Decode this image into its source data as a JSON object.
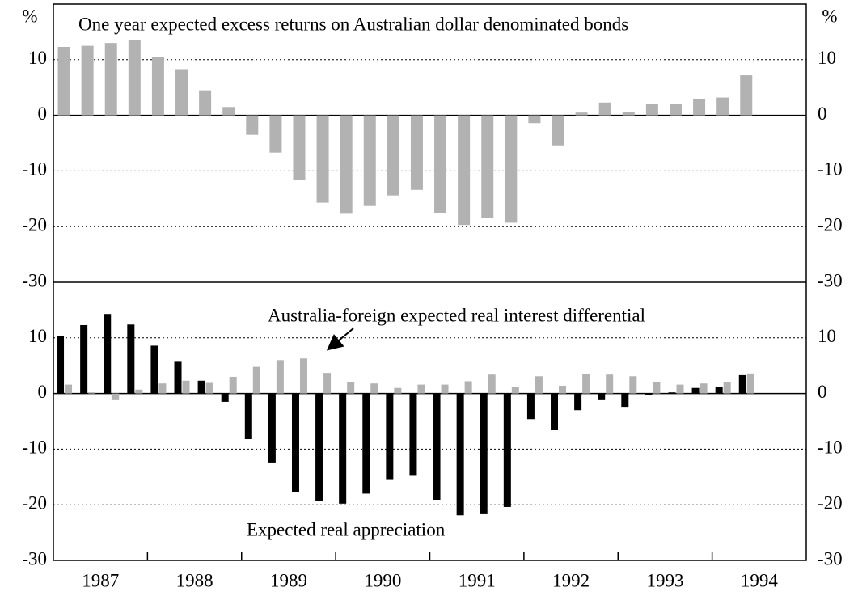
{
  "chart_data": [
    {
      "type": "bar",
      "title": "One year expected excess returns on Australian dollar denominated bonds",
      "y_unit": "%",
      "categories": [
        null,
        null,
        null,
        null,
        null,
        null,
        null,
        null,
        null,
        null,
        null,
        null,
        null,
        null,
        null,
        null,
        null,
        null,
        null,
        null,
        null,
        null,
        null,
        null,
        null,
        null,
        null,
        null,
        null,
        null,
        null,
        null
      ],
      "series": [
        {
          "color": "#b2b2b2",
          "values": [
            12.3,
            12.5,
            13.0,
            13.5,
            10.5,
            8.3,
            4.5,
            1.5,
            -3.5,
            -6.7,
            -11.6,
            -15.7,
            -17.7,
            -16.3,
            -14.4,
            -13.4,
            -17.5,
            -19.7,
            -18.5,
            -19.3,
            -1.4,
            -5.4,
            0.5,
            2.3,
            0.6,
            2.0,
            2.0,
            3.0,
            3.2,
            7.2,
            null,
            null
          ]
        }
      ],
      "ylim": [
        -30,
        20
      ],
      "yticks": [
        -30,
        -20,
        -10,
        0,
        10
      ],
      "grid": true
    },
    {
      "type": "bar",
      "y_unit": null,
      "categories": [
        null,
        null,
        null,
        null,
        null,
        null,
        null,
        null,
        null,
        null,
        null,
        null,
        null,
        null,
        null,
        null,
        null,
        null,
        null,
        null,
        null,
        null,
        null,
        null,
        null,
        null,
        null,
        null,
        null,
        null,
        null,
        null
      ],
      "xtick_labels": [
        "1987",
        "1988",
        "1989",
        "1990",
        "1991",
        "1992",
        "1993",
        "1994"
      ],
      "series": [
        {
          "name": "Expected real appreciation",
          "color": "#000000",
          "values": [
            10.3,
            12.3,
            14.3,
            12.4,
            8.6,
            5.7,
            2.3,
            -1.5,
            -8.2,
            -12.4,
            -17.7,
            -19.3,
            -19.8,
            -18.0,
            -15.4,
            -14.8,
            -19.1,
            -21.9,
            -21.7,
            -20.4,
            -4.6,
            -6.6,
            -3.0,
            -1.2,
            -2.4,
            -0.2,
            0.2,
            1.0,
            1.2,
            3.3,
            null,
            null
          ]
        },
        {
          "name": "Australia-foreign expected real interest differential",
          "color": "#b2b2b2",
          "values": [
            1.6,
            0.2,
            -1.2,
            0.7,
            1.8,
            2.3,
            1.9,
            3.0,
            4.8,
            6.0,
            6.3,
            3.7,
            2.1,
            1.8,
            1.0,
            1.6,
            1.6,
            2.2,
            3.4,
            1.2,
            3.1,
            1.4,
            3.5,
            3.4,
            3.1,
            2.0,
            1.6,
            1.8,
            2.0,
            3.6,
            null,
            null
          ]
        }
      ],
      "ylim": [
        -30,
        20
      ],
      "yticks": [
        -30,
        -20,
        -10,
        0,
        10
      ],
      "grid": true
    }
  ]
}
